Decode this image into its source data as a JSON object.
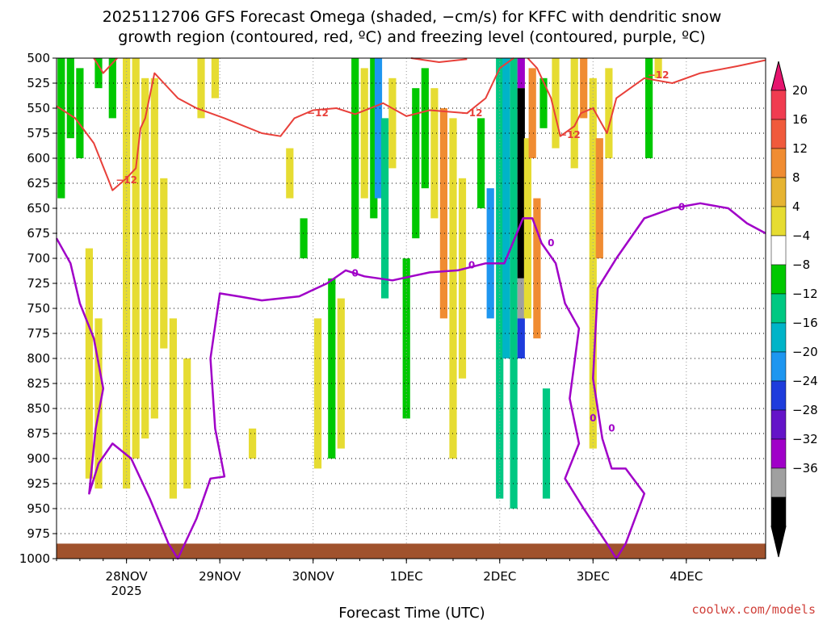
{
  "chart_data": {
    "type": "heatmap",
    "title_line1": "2025112706 GFS Forecast Omega (shaded, −cm/s) for KFFC with dendritic snow",
    "title_line2": "growth region (contoured, red, ºC) and freezing level (contoured, purple, ºC)",
    "xlabel": "Forecast Time (UTC)",
    "ylabel": "Pressure (hPa)",
    "credit": "coolwx.com/models",
    "x_range_days": [
      0,
      7.6
    ],
    "ylim": [
      1000,
      500
    ],
    "x_ticks": [
      {
        "label": "28NOV",
        "sub": "2025",
        "day": 0.75
      },
      {
        "label": "29NOV",
        "sub": "",
        "day": 1.75
      },
      {
        "label": "30NOV",
        "sub": "",
        "day": 2.75
      },
      {
        "label": "1DEC",
        "sub": "",
        "day": 3.75
      },
      {
        "label": "2DEC",
        "sub": "",
        "day": 4.75
      },
      {
        "label": "3DEC",
        "sub": "",
        "day": 5.75
      },
      {
        "label": "4DEC",
        "sub": "",
        "day": 6.75
      }
    ],
    "y_ticks": [
      500,
      525,
      550,
      575,
      600,
      625,
      650,
      675,
      700,
      725,
      750,
      775,
      800,
      825,
      850,
      875,
      900,
      925,
      950,
      975,
      1000
    ],
    "colorbar": {
      "labels": [
        "20",
        "16",
        "12",
        "8",
        "4",
        "−4",
        "−8",
        "−12",
        "−16",
        "−20",
        "−24",
        "−28",
        "−32",
        "−36"
      ],
      "colors": [
        "#f03c50",
        "#f05a3c",
        "#f08c32",
        "#e6b432",
        "#e6dc32",
        "#ffffff",
        "#00c800",
        "#00c882",
        "#00b4c8",
        "#1e96f0",
        "#1e3cdc",
        "#6414c8",
        "#a000c8",
        "#a0a0a0",
        "#000000"
      ],
      "top_arrow_color": "#e6146e",
      "bottom_arrow_color": "#000000"
    },
    "shaded_omega": [
      {
        "d": 0.05,
        "p1": 500,
        "p2": 640,
        "v": -6
      },
      {
        "d": 0.15,
        "p1": 500,
        "p2": 580,
        "v": -6
      },
      {
        "d": 0.25,
        "p1": 510,
        "p2": 600,
        "v": -6
      },
      {
        "d": 0.45,
        "p1": 500,
        "p2": 530,
        "v": -6
      },
      {
        "d": 0.6,
        "p1": 500,
        "p2": 560,
        "v": -6
      },
      {
        "d": 0.75,
        "p1": 500,
        "p2": 930,
        "v": 5
      },
      {
        "d": 0.85,
        "p1": 500,
        "p2": 900,
        "v": 5
      },
      {
        "d": 0.95,
        "p1": 520,
        "p2": 880,
        "v": 5
      },
      {
        "d": 1.05,
        "p1": 520,
        "p2": 860,
        "v": 5
      },
      {
        "d": 0.35,
        "p1": 690,
        "p2": 920,
        "v": 5
      },
      {
        "d": 0.45,
        "p1": 760,
        "p2": 930,
        "v": 5
      },
      {
        "d": 1.15,
        "p1": 620,
        "p2": 790,
        "v": 5
      },
      {
        "d": 1.25,
        "p1": 760,
        "p2": 940,
        "v": 5
      },
      {
        "d": 1.4,
        "p1": 800,
        "p2": 930,
        "v": 5
      },
      {
        "d": 1.55,
        "p1": 500,
        "p2": 560,
        "v": 5
      },
      {
        "d": 1.7,
        "p1": 500,
        "p2": 540,
        "v": 5
      },
      {
        "d": 2.1,
        "p1": 870,
        "p2": 900,
        "v": 5
      },
      {
        "d": 2.5,
        "p1": 590,
        "p2": 640,
        "v": 5
      },
      {
        "d": 2.65,
        "p1": 660,
        "p2": 700,
        "v": -6
      },
      {
        "d": 2.8,
        "p1": 760,
        "p2": 910,
        "v": 5
      },
      {
        "d": 2.95,
        "p1": 720,
        "p2": 900,
        "v": -6
      },
      {
        "d": 3.05,
        "p1": 740,
        "p2": 890,
        "v": 5
      },
      {
        "d": 3.2,
        "p1": 500,
        "p2": 700,
        "v": -6
      },
      {
        "d": 3.3,
        "p1": 510,
        "p2": 640,
        "v": 5
      },
      {
        "d": 3.4,
        "p1": 500,
        "p2": 660,
        "v": -6
      },
      {
        "d": 3.45,
        "p1": 500,
        "p2": 640,
        "v": -18
      },
      {
        "d": 3.52,
        "p1": 560,
        "p2": 740,
        "v": -9
      },
      {
        "d": 3.6,
        "p1": 520,
        "p2": 610,
        "v": 5
      },
      {
        "d": 3.75,
        "p1": 700,
        "p2": 860,
        "v": -6
      },
      {
        "d": 3.85,
        "p1": 530,
        "p2": 680,
        "v": -6
      },
      {
        "d": 3.95,
        "p1": 510,
        "p2": 630,
        "v": -6
      },
      {
        "d": 4.05,
        "p1": 530,
        "p2": 660,
        "v": 5
      },
      {
        "d": 4.15,
        "p1": 550,
        "p2": 760,
        "v": 10
      },
      {
        "d": 4.25,
        "p1": 560,
        "p2": 900,
        "v": 5
      },
      {
        "d": 4.35,
        "p1": 620,
        "p2": 820,
        "v": 5
      },
      {
        "d": 4.55,
        "p1": 560,
        "p2": 650,
        "v": -6
      },
      {
        "d": 4.65,
        "p1": 630,
        "p2": 760,
        "v": -18
      },
      {
        "d": 4.75,
        "p1": 500,
        "p2": 940,
        "v": -9
      },
      {
        "d": 4.82,
        "p1": 500,
        "p2": 800,
        "v": -12
      },
      {
        "d": 4.9,
        "p1": 500,
        "p2": 950,
        "v": -9
      },
      {
        "d": 4.98,
        "p1": 500,
        "p2": 530,
        "v": -30
      },
      {
        "d": 4.98,
        "p1": 530,
        "p2": 720,
        "v": -36
      },
      {
        "d": 4.98,
        "p1": 720,
        "p2": 760,
        "v": -33
      },
      {
        "d": 4.98,
        "p1": 760,
        "p2": 800,
        "v": -22
      },
      {
        "d": 5.05,
        "p1": 580,
        "p2": 760,
        "v": 5
      },
      {
        "d": 5.1,
        "p1": 510,
        "p2": 600,
        "v": 8
      },
      {
        "d": 5.15,
        "p1": 640,
        "p2": 780,
        "v": 10
      },
      {
        "d": 5.22,
        "p1": 520,
        "p2": 570,
        "v": -6
      },
      {
        "d": 5.25,
        "p1": 830,
        "p2": 940,
        "v": -9
      },
      {
        "d": 5.35,
        "p1": 500,
        "p2": 590,
        "v": 5
      },
      {
        "d": 5.55,
        "p1": 500,
        "p2": 610,
        "v": 5
      },
      {
        "d": 5.65,
        "p1": 500,
        "p2": 560,
        "v": 10
      },
      {
        "d": 5.75,
        "p1": 520,
        "p2": 890,
        "v": 5
      },
      {
        "d": 5.82,
        "p1": 580,
        "p2": 700,
        "v": 10
      },
      {
        "d": 5.92,
        "p1": 510,
        "p2": 600,
        "v": 5
      },
      {
        "d": 6.35,
        "p1": 500,
        "p2": 600,
        "v": -6
      },
      {
        "d": 6.45,
        "p1": 500,
        "p2": 520,
        "v": 5
      }
    ],
    "dgz_contour_neg12": {
      "label": "−12",
      "upper_segment": [
        [
          0.0,
          548
        ],
        [
          0.2,
          560
        ],
        [
          0.4,
          585
        ],
        [
          0.55,
          620
        ],
        [
          0.6,
          632
        ],
        [
          0.75,
          620
        ],
        [
          0.85,
          610
        ],
        [
          0.9,
          570
        ],
        [
          0.95,
          560
        ],
        [
          1.05,
          515
        ],
        [
          1.15,
          525
        ],
        [
          1.3,
          540
        ],
        [
          1.5,
          550
        ],
        [
          1.8,
          560
        ],
        [
          2.2,
          575
        ],
        [
          2.4,
          578
        ],
        [
          2.55,
          560
        ],
        [
          2.75,
          552
        ],
        [
          3.0,
          550
        ],
        [
          3.2,
          556
        ],
        [
          3.5,
          545
        ],
        [
          3.75,
          558
        ],
        [
          4.0,
          552
        ],
        [
          4.4,
          555
        ],
        [
          4.6,
          540
        ],
        [
          4.75,
          510
        ],
        [
          4.9,
          500
        ]
      ],
      "lower_segment": [
        [
          5.05,
          500
        ],
        [
          5.15,
          510
        ],
        [
          5.3,
          540
        ],
        [
          5.4,
          578
        ],
        [
          5.55,
          568
        ],
        [
          5.62,
          555
        ],
        [
          5.75,
          550
        ],
        [
          5.9,
          575
        ],
        [
          6.0,
          540
        ],
        [
          6.3,
          520
        ],
        [
          6.6,
          525
        ],
        [
          6.9,
          515
        ],
        [
          7.3,
          508
        ],
        [
          7.6,
          502
        ]
      ],
      "top_band": [
        [
          0.4,
          500
        ],
        [
          0.5,
          515
        ],
        [
          0.6,
          505
        ],
        [
          0.65,
          500
        ]
      ],
      "top_band_right": [
        [
          3.8,
          500
        ],
        [
          4.1,
          504
        ],
        [
          4.4,
          501
        ]
      ]
    },
    "freezing_level_0C": {
      "label": "0",
      "points": [
        [
          0.0,
          680
        ],
        [
          0.15,
          705
        ],
        [
          0.25,
          745
        ],
        [
          0.4,
          780
        ],
        [
          0.5,
          830
        ],
        [
          0.42,
          870
        ],
        [
          0.35,
          935
        ],
        [
          0.45,
          905
        ],
        [
          0.6,
          885
        ],
        [
          0.8,
          900
        ],
        [
          1.0,
          940
        ],
        [
          1.2,
          985
        ],
        [
          1.3,
          1000
        ],
        [
          1.5,
          960
        ],
        [
          1.65,
          920
        ],
        [
          1.8,
          918
        ],
        [
          1.7,
          870
        ],
        [
          1.65,
          800
        ],
        [
          1.75,
          735
        ],
        [
          1.95,
          738
        ],
        [
          2.2,
          742
        ],
        [
          2.6,
          738
        ],
        [
          2.9,
          725
        ],
        [
          3.1,
          712
        ],
        [
          3.3,
          718
        ],
        [
          3.6,
          722
        ],
        [
          3.8,
          718
        ],
        [
          4.0,
          714
        ],
        [
          4.3,
          712
        ],
        [
          4.6,
          705
        ],
        [
          4.8,
          705
        ],
        [
          5.0,
          660
        ],
        [
          5.1,
          660
        ],
        [
          5.2,
          685
        ],
        [
          5.35,
          705
        ],
        [
          5.45,
          745
        ],
        [
          5.6,
          770
        ],
        [
          5.5,
          840
        ],
        [
          5.6,
          885
        ],
        [
          5.45,
          920
        ],
        [
          5.65,
          950
        ],
        [
          5.9,
          985
        ],
        [
          6.0,
          1000
        ],
        [
          6.1,
          985
        ],
        [
          6.3,
          935
        ],
        [
          6.1,
          910
        ],
        [
          5.95,
          910
        ],
        [
          5.85,
          880
        ],
        [
          5.75,
          820
        ],
        [
          5.8,
          730
        ],
        [
          6.0,
          700
        ],
        [
          6.3,
          660
        ],
        [
          6.6,
          650
        ],
        [
          6.9,
          645
        ],
        [
          7.2,
          650
        ],
        [
          7.4,
          665
        ],
        [
          7.6,
          675
        ]
      ]
    },
    "terrain_hpa": 985
  }
}
